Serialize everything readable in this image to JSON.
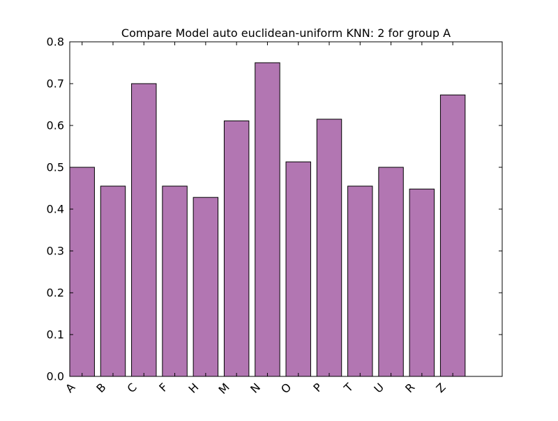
{
  "chart_data": {
    "type": "bar",
    "title": "Compare Model auto euclidean-uniform KNN: 2 for group A",
    "xlabel": "",
    "ylabel": "",
    "categories": [
      "A",
      "B",
      "C",
      "F",
      "H",
      "M",
      "N",
      "O",
      "P",
      "T",
      "U",
      "R",
      "Z"
    ],
    "values": [
      0.5,
      0.455,
      0.7,
      0.455,
      0.428,
      0.611,
      0.75,
      0.513,
      0.615,
      0.455,
      0.5,
      0.448,
      0.673
    ],
    "ylim": [
      0,
      0.8
    ],
    "xlim": [
      0,
      14
    ],
    "yticks": [
      "0.0",
      "0.1",
      "0.2",
      "0.3",
      "0.4",
      "0.5",
      "0.6",
      "0.7",
      "0.8"
    ],
    "grid": false,
    "legend": "none",
    "bar_color": "#b276b2",
    "edge_color": "#000000"
  }
}
